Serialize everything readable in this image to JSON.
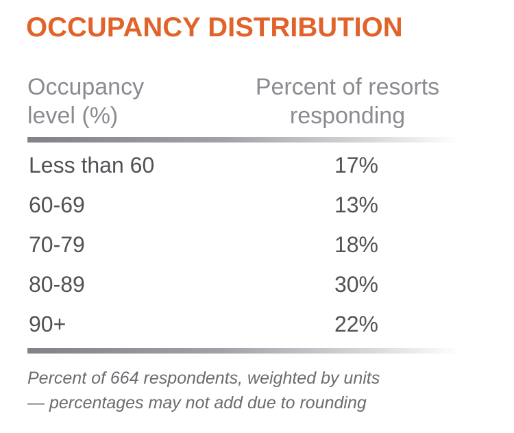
{
  "title": "OCCUPANCY DISTRIBUTION",
  "chart_data": {
    "type": "table",
    "title": "OCCUPANCY DISTRIBUTION",
    "columns": [
      "Occupancy level (%)",
      "Percent of resorts responding"
    ],
    "header": {
      "col1": [
        "Occupancy",
        "level (%)"
      ],
      "col2": [
        "Percent of resorts",
        "responding"
      ]
    },
    "rows": [
      {
        "level": "Less than 60",
        "percent": "17%"
      },
      {
        "level": "60-69",
        "percent": "13%"
      },
      {
        "level": "70-79",
        "percent": "18%"
      },
      {
        "level": "80-89",
        "percent": "30%"
      },
      {
        "level": "90+",
        "percent": "22%"
      }
    ],
    "footnote": [
      "Percent of 664 respondents, weighted by units",
      "— percentages may not add due to rounding"
    ]
  },
  "colors": {
    "title": "#e2632a",
    "header": "#8a8c91",
    "body": "#505256"
  }
}
